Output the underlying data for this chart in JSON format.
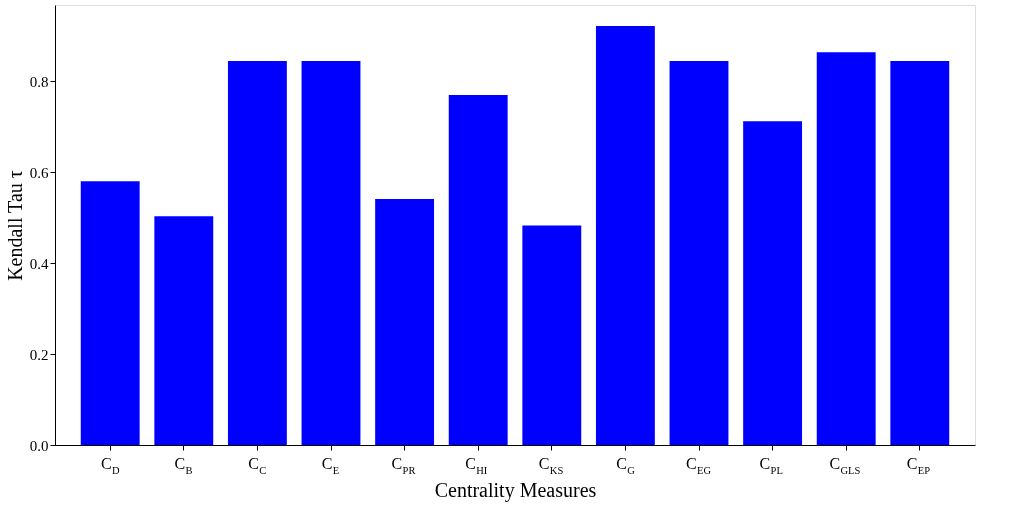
{
  "chart_data": {
    "type": "bar",
    "xlabel": "Centrality Measures",
    "ylabel": "Kendall Tau τ",
    "categories": [
      "C$_{D}$",
      "C$_{B}$",
      "C$_{C}$",
      "C$_{E}$",
      "C$_{PR}$",
      "C$_{HI}$",
      "C$_{KS}$",
      "C$_{G}$",
      "C$_{EG}$",
      "C$_{PL}$",
      "C$_{GLS}$",
      "C$_{EP}$"
    ],
    "values": [
      0.58,
      0.503,
      0.845,
      0.845,
      0.541,
      0.77,
      0.483,
      0.922,
      0.845,
      0.712,
      0.864,
      0.845
    ],
    "color": "#0000ff",
    "ylim": [
      0,
      0.968
    ],
    "yticks": [
      {
        "value": 0,
        "label": "0.0"
      },
      {
        "value": 0.2,
        "label": "0.2"
      },
      {
        "value": 0.4,
        "label": "0.4"
      },
      {
        "value": 0.6,
        "label": "0.6"
      },
      {
        "value": 0.8,
        "label": "0.8"
      }
    ],
    "grid": false
  }
}
